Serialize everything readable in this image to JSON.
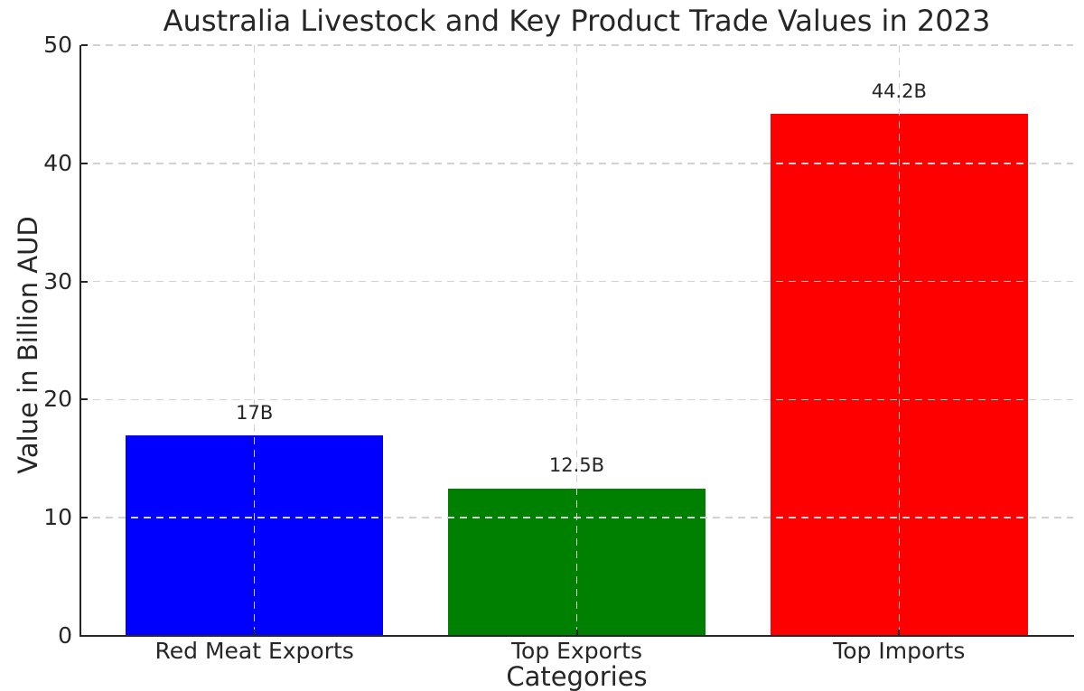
{
  "chart_data": {
    "type": "bar",
    "title": "Australia Livestock and Key Product Trade Values in 2023",
    "xlabel": "Categories",
    "ylabel": "Value in Billion AUD",
    "categories": [
      "Red Meat Exports",
      "Top Exports",
      "Top Imports"
    ],
    "values": [
      17,
      12.5,
      44.2
    ],
    "bar_labels": [
      "17B",
      "12.5B",
      "44.2B"
    ],
    "bar_colors": [
      "#0000ff",
      "#008000",
      "#ff0000"
    ],
    "ylim": [
      0,
      50
    ],
    "yticks": [
      0,
      10,
      20,
      30,
      40,
      50
    ],
    "bar_width_fraction": 0.8,
    "grid": {
      "horizontal": true,
      "vertical": true,
      "style": "dashed"
    },
    "legend": "none"
  },
  "colors": {
    "background": "#ffffff",
    "text": "#262626",
    "axis": "#262626",
    "grid": "#d2d2d2"
  }
}
